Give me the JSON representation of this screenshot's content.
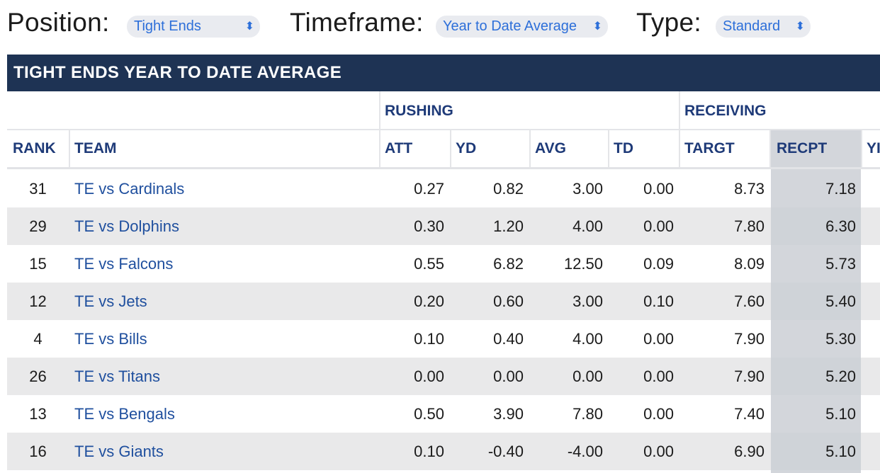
{
  "filters": {
    "position_label": "Position:",
    "position_value": "Tight Ends",
    "timeframe_label": "Timeframe:",
    "timeframe_value": "Year to Date Average",
    "type_label": "Type:",
    "type_value": "Standard",
    "chevron_icon": "up-down-chevron-icon"
  },
  "table": {
    "title": "TIGHT ENDS YEAR TO DATE AVERAGE",
    "groups": {
      "rushing": "RUSHING",
      "receiving": "RECEIVING"
    },
    "columns": {
      "rank": "RANK",
      "team": "TEAM",
      "att": "ATT",
      "yd": "YD",
      "avg": "AVG",
      "td": "TD",
      "targt": "TARGT",
      "recpt": "RECPT",
      "rec_yd_partial": "YI"
    },
    "rows": [
      {
        "rank": "31",
        "team": "TE vs Cardinals",
        "att": "0.27",
        "yd": "0.82",
        "avg": "3.00",
        "td": "0.00",
        "targt": "8.73",
        "recpt": "7.18"
      },
      {
        "rank": "29",
        "team": "TE vs Dolphins",
        "att": "0.30",
        "yd": "1.20",
        "avg": "4.00",
        "td": "0.00",
        "targt": "7.80",
        "recpt": "6.30"
      },
      {
        "rank": "15",
        "team": "TE vs Falcons",
        "att": "0.55",
        "yd": "6.82",
        "avg": "12.50",
        "td": "0.09",
        "targt": "8.09",
        "recpt": "5.73"
      },
      {
        "rank": "12",
        "team": "TE vs Jets",
        "att": "0.20",
        "yd": "0.60",
        "avg": "3.00",
        "td": "0.10",
        "targt": "7.60",
        "recpt": "5.40"
      },
      {
        "rank": "4",
        "team": "TE vs Bills",
        "att": "0.10",
        "yd": "0.40",
        "avg": "4.00",
        "td": "0.00",
        "targt": "7.90",
        "recpt": "5.30"
      },
      {
        "rank": "26",
        "team": "TE vs Titans",
        "att": "0.00",
        "yd": "0.00",
        "avg": "0.00",
        "td": "0.00",
        "targt": "7.90",
        "recpt": "5.20"
      },
      {
        "rank": "13",
        "team": "TE vs Bengals",
        "att": "0.50",
        "yd": "3.90",
        "avg": "7.80",
        "td": "0.00",
        "targt": "7.40",
        "recpt": "5.10"
      },
      {
        "rank": "16",
        "team": "TE vs Giants",
        "att": "0.10",
        "yd": "-0.40",
        "avg": "-4.00",
        "td": "0.00",
        "targt": "6.90",
        "recpt": "5.10"
      }
    ]
  },
  "colors": {
    "title_bar": "#1e3354",
    "header_text": "#1e3a78",
    "team_link": "#1f4f9e",
    "select_text": "#2d6fd9",
    "sorted_column": "#d3d6db",
    "alt_row": "#e9e9ea"
  }
}
